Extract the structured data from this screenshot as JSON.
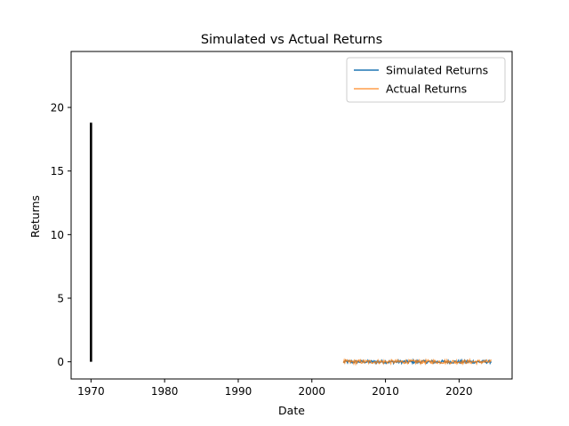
{
  "chart_data": {
    "type": "line",
    "title": "Simulated vs Actual Returns",
    "xlabel": "Date",
    "ylabel": "Returns",
    "xlim": [
      1967.3,
      2027.2
    ],
    "ylim": [
      -1.35,
      24.4
    ],
    "x_ticks": [
      1970,
      1980,
      1990,
      2000,
      2010,
      2020
    ],
    "y_ticks": [
      0,
      5,
      10,
      15,
      20
    ],
    "grid": false,
    "legend_position": "top-right",
    "vertical_marker": {
      "x": 1970,
      "y_start": 0,
      "y_end": 18.8,
      "color": "#000000"
    },
    "series": [
      {
        "name": "Simulated Returns",
        "color": "#1f77b4",
        "x_start": 2004.3,
        "x_end": 2024.4,
        "points": 220,
        "values_range": [
          -0.12,
          0.12
        ]
      },
      {
        "name": "Actual Returns",
        "color": "#ff7f0e",
        "x_start": 2004.3,
        "x_end": 2024.4,
        "points": 220,
        "values_range": [
          -0.15,
          0.15
        ]
      }
    ]
  }
}
